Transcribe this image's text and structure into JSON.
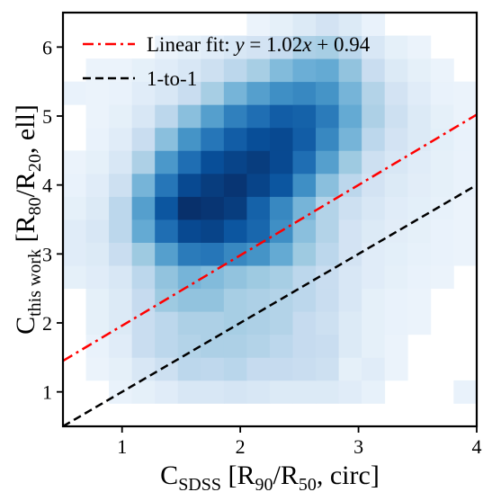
{
  "chart_data": {
    "type": "heatmap",
    "title": "",
    "xlabel": {
      "base": "C",
      "sub": "SDSS",
      "rest": " [R",
      "sub2": "90",
      "mid": "/R",
      "sub3": "50",
      "tail": ", circ]"
    },
    "ylabel": {
      "base": "C",
      "sub": "this work",
      "rest": " [R",
      "sub2": "80",
      "mid": "/R",
      "sub3": "20",
      "tail": ", ell]"
    },
    "xlim": [
      0.5,
      4.0
    ],
    "ylim": [
      0.5,
      6.5
    ],
    "xticks": [
      1,
      2,
      3,
      4
    ],
    "yticks": [
      1,
      2,
      3,
      4,
      5,
      6
    ],
    "grid": false,
    "legend_position": "top-left",
    "colormap": "Blues",
    "bins": {
      "x_edges_start": 0.5,
      "x_bin_width": 0.1944,
      "y_edges_start": 0.5,
      "y_bin_width": 0.3333,
      "n_x": 18,
      "n_y": 18,
      "counts": [
        [
          0,
          0,
          0,
          0,
          0,
          0,
          0,
          0,
          0,
          0,
          0,
          0,
          0,
          0,
          0,
          0,
          0,
          0
        ],
        [
          0,
          0,
          0.03,
          0.05,
          0.08,
          0.12,
          0.12,
          0.14,
          0.12,
          0.1,
          0.1,
          0.1,
          0.08,
          0.04,
          0,
          0,
          0,
          0.03
        ],
        [
          0,
          0.02,
          0.05,
          0.12,
          0.18,
          0.25,
          0.24,
          0.26,
          0.22,
          0.22,
          0.2,
          0.18,
          0.05,
          0.08,
          0.02,
          0,
          0,
          0
        ],
        [
          0,
          0.03,
          0.08,
          0.2,
          0.25,
          0.28,
          0.3,
          0.3,
          0.28,
          0.25,
          0.22,
          0.2,
          0.1,
          0.05,
          0.02,
          0,
          0,
          0
        ],
        [
          0,
          0.05,
          0.1,
          0.2,
          0.25,
          0.3,
          0.3,
          0.32,
          0.3,
          0.28,
          0.22,
          0.18,
          0.1,
          0.05,
          0.03,
          0.02,
          0,
          0
        ],
        [
          0,
          0.05,
          0.1,
          0.22,
          0.35,
          0.38,
          0.38,
          0.32,
          0.3,
          0.28,
          0.25,
          0.2,
          0.12,
          0.05,
          0.03,
          0.02,
          0,
          0
        ],
        [
          0.05,
          0.08,
          0.12,
          0.25,
          0.38,
          0.45,
          0.42,
          0.38,
          0.35,
          0.32,
          0.25,
          0.2,
          0.12,
          0.08,
          0.05,
          0.03,
          0.02,
          0
        ],
        [
          0.08,
          0.1,
          0.2,
          0.35,
          0.55,
          0.7,
          0.72,
          0.65,
          0.6,
          0.5,
          0.35,
          0.25,
          0.15,
          0.08,
          0.06,
          0.04,
          0.03,
          0.02
        ],
        [
          0.08,
          0.12,
          0.25,
          0.5,
          0.75,
          0.9,
          0.92,
          0.85,
          0.78,
          0.62,
          0.4,
          0.28,
          0.15,
          0.1,
          0.07,
          0.05,
          0.03,
          0.02
        ],
        [
          0.05,
          0.1,
          0.25,
          0.55,
          0.85,
          1.0,
          0.98,
          0.95,
          0.8,
          0.65,
          0.45,
          0.28,
          0.18,
          0.12,
          0.08,
          0.06,
          0.04,
          0.02
        ],
        [
          0.03,
          0.08,
          0.18,
          0.45,
          0.72,
          0.9,
          0.95,
          0.98,
          0.92,
          0.85,
          0.62,
          0.4,
          0.25,
          0.15,
          0.1,
          0.07,
          0.05,
          0.03
        ],
        [
          0.02,
          0.05,
          0.12,
          0.3,
          0.58,
          0.75,
          0.88,
          0.92,
          0.95,
          0.9,
          0.75,
          0.55,
          0.35,
          0.18,
          0.12,
          0.08,
          0.05,
          0.03
        ],
        [
          0,
          0.03,
          0.08,
          0.2,
          0.4,
          0.6,
          0.72,
          0.82,
          0.88,
          0.9,
          0.82,
          0.65,
          0.45,
          0.25,
          0.15,
          0.1,
          0.06,
          0.03
        ],
        [
          0,
          0.02,
          0.05,
          0.12,
          0.25,
          0.4,
          0.55,
          0.68,
          0.75,
          0.82,
          0.8,
          0.7,
          0.5,
          0.3,
          0.18,
          0.1,
          0.05,
          0.02
        ],
        [
          0.03,
          0.02,
          0.03,
          0.08,
          0.12,
          0.2,
          0.32,
          0.45,
          0.55,
          0.62,
          0.65,
          0.6,
          0.45,
          0.28,
          0.15,
          0.08,
          0.03,
          0.02
        ],
        [
          0,
          0.02,
          0.02,
          0.05,
          0.08,
          0.12,
          0.18,
          0.25,
          0.32,
          0.42,
          0.48,
          0.5,
          0.38,
          0.2,
          0.1,
          0.05,
          0.02,
          0
        ],
        [
          0,
          0,
          0,
          0,
          0.02,
          0.05,
          0.08,
          0.12,
          0.15,
          0.22,
          0.3,
          0.32,
          0.25,
          0.12,
          0.05,
          0.02,
          0,
          0
        ],
        [
          0,
          0,
          0,
          0,
          0,
          0,
          0,
          0,
          0.02,
          0.05,
          0.1,
          0.15,
          0.1,
          0.03,
          0,
          0,
          0,
          0
        ]
      ]
    },
    "series": [
      {
        "name": "Linear fit: y = 1.02x + 0.94",
        "slope": 1.02,
        "intercept": 0.94,
        "color": "#ff0000",
        "style": "dash-dot"
      },
      {
        "name": "1-to-1",
        "slope": 1.0,
        "intercept": 0.0,
        "color": "#000000",
        "style": "dashed"
      }
    ]
  }
}
